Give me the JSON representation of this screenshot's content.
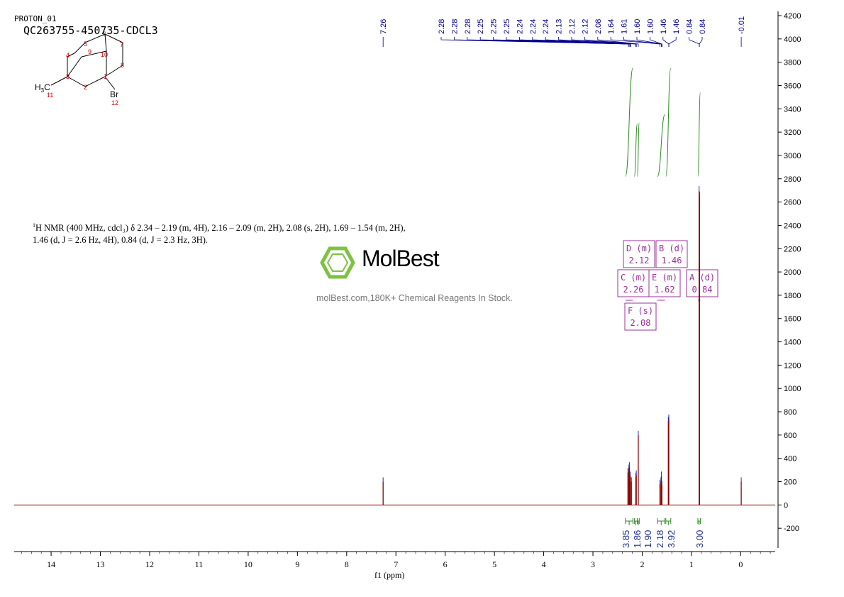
{
  "header": {
    "experiment": "PROTON_01",
    "sample": "QC263755-450735-CDCL3"
  },
  "molecule": {
    "atoms": [
      "1",
      "2",
      "3",
      "4",
      "5",
      "6",
      "7",
      "8",
      "9",
      "10",
      "11",
      "12"
    ],
    "methyl_label": "H3C",
    "methyl_H": "H",
    "methyl_sub": "3",
    "methyl_C": "C",
    "halogen": "Br"
  },
  "description": {
    "prefix_sup": "1",
    "line1": "H NMR (400 MHz, cdcl₃) δ 2.34 – 2.19 (m, 4H), 2.16 – 2.09 (m, 2H), 2.08 (s, 2H), 1.69 – 1.54 (m, 2H),",
    "line2": "1.46 (d, J = 2.6 Hz, 4H), 0.84 (d, J = 2.3 Hz, 3H)."
  },
  "watermark": {
    "brand": "MolBest",
    "tagline": "molBest.com,180K+ Chemical Reagents In Stock."
  },
  "chart_data": {
    "type": "line",
    "title": "",
    "xlabel": "f1  (ppm)",
    "ylabel": "",
    "xlim": [
      14.75,
      -0.7
    ],
    "ylim": [
      -400,
      4200
    ],
    "x_ticks": [
      14,
      13,
      12,
      11,
      10,
      9,
      8,
      7,
      6,
      5,
      4,
      3,
      2,
      1,
      0
    ],
    "y_ticks": [
      -200,
      0,
      200,
      400,
      600,
      800,
      1000,
      1200,
      1400,
      1600,
      1800,
      2000,
      2200,
      2400,
      2600,
      2800,
      3000,
      3200,
      3400,
      3600,
      3800,
      4000,
      4200
    ],
    "peak_labels": [
      "7.26",
      "2.28",
      "2.28",
      "2.28",
      "2.25",
      "2.25",
      "2.25",
      "2.24",
      "2.24",
      "2.24",
      "2.13",
      "2.12",
      "2.12",
      "2.08",
      "1.64",
      "1.61",
      "1.60",
      "1.60",
      "1.46",
      "1.46",
      "0.84",
      "0.84",
      "-0.01"
    ],
    "peaks": [
      {
        "x": 7.26,
        "y": 200
      },
      {
        "x": 2.29,
        "y": 280
      },
      {
        "x": 2.27,
        "y": 310
      },
      {
        "x": 2.26,
        "y": 330
      },
      {
        "x": 2.24,
        "y": 250
      },
      {
        "x": 2.22,
        "y": 200
      },
      {
        "x": 2.13,
        "y": 240
      },
      {
        "x": 2.12,
        "y": 260
      },
      {
        "x": 2.08,
        "y": 600
      },
      {
        "x": 1.64,
        "y": 180
      },
      {
        "x": 1.62,
        "y": 200
      },
      {
        "x": 1.61,
        "y": 250
      },
      {
        "x": 1.6,
        "y": 170
      },
      {
        "x": 1.47,
        "y": 720
      },
      {
        "x": 1.46,
        "y": 740
      },
      {
        "x": 0.845,
        "y": 2700
      },
      {
        "x": 0.835,
        "y": 2650
      },
      {
        "x": -0.01,
        "y": 200
      }
    ],
    "integral_curves": [
      {
        "x1": 2.34,
        "x2": 2.19,
        "y1": 2820,
        "y2": 3750
      },
      {
        "x1": 2.16,
        "x2": 2.1,
        "y1": 2820,
        "y2": 3270
      },
      {
        "x1": 2.1,
        "x2": 2.06,
        "y1": 2820,
        "y2": 3280
      },
      {
        "x1": 1.69,
        "x2": 1.54,
        "y1": 2820,
        "y2": 3350
      },
      {
        "x1": 1.52,
        "x2": 1.42,
        "y1": 2820,
        "y2": 3750
      },
      {
        "x1": 0.87,
        "x2": 0.82,
        "y1": 2820,
        "y2": 3540
      }
    ],
    "integrals": [
      {
        "x1": 2.34,
        "x2": 2.19,
        "value": "3.85"
      },
      {
        "x1": 2.16,
        "x2": 2.1,
        "value": "1.86"
      },
      {
        "x1": 2.1,
        "x2": 2.06,
        "value": "1.90"
      },
      {
        "x1": 1.69,
        "x2": 1.54,
        "value": "2.18"
      },
      {
        "x1": 1.52,
        "x2": 1.42,
        "value": "3.92"
      },
      {
        "x1": 0.87,
        "x2": 0.82,
        "value": "3.00"
      }
    ],
    "multiplets": [
      {
        "id": "D",
        "type": "m",
        "shift": "2.12"
      },
      {
        "id": "B",
        "type": "d",
        "shift": "1.46"
      },
      {
        "id": "C",
        "type": "m",
        "shift": "2.26"
      },
      {
        "id": "E",
        "type": "m",
        "shift": "1.62"
      },
      {
        "id": "A",
        "type": "d",
        "shift": "0.84"
      },
      {
        "id": "F",
        "type": "s",
        "shift": "2.08"
      }
    ],
    "colors": {
      "spectrum": "#8b0000",
      "integral": "#2e8b22",
      "peak_pick": "#00008b",
      "multiplet": "#9b309b"
    }
  }
}
